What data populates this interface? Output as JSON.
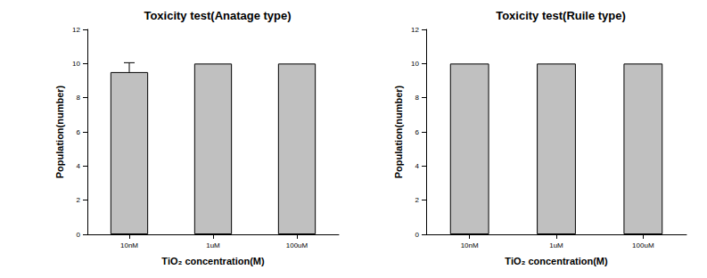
{
  "chart_data": [
    {
      "type": "bar",
      "title": "Toxicity test(Anatage type)",
      "x_label": "TiO₂ concentration(M)",
      "y_label": "Population(number)",
      "categories": [
        "10nM",
        "1uM",
        "100uM"
      ],
      "values": [
        9.5,
        10,
        10
      ],
      "errors": [
        0.55,
        0,
        0
      ],
      "color": "#c0c0c0",
      "ylim": [
        0,
        12
      ],
      "yticks": [
        0,
        2,
        4,
        6,
        8,
        10,
        12
      ],
      "grid": false
    },
    {
      "type": "bar",
      "title": "Toxicity test(Ruile type)",
      "x_label": "TiO₂ concentration(M)",
      "y_label": "Population(number)",
      "categories": [
        "10nM",
        "1uM",
        "100uM"
      ],
      "values": [
        10,
        10,
        10
      ],
      "color": "#c0c0c0",
      "ylim": [
        0,
        12
      ],
      "yticks": [
        0,
        2,
        4,
        6,
        8,
        10,
        12
      ],
      "grid": false
    }
  ]
}
